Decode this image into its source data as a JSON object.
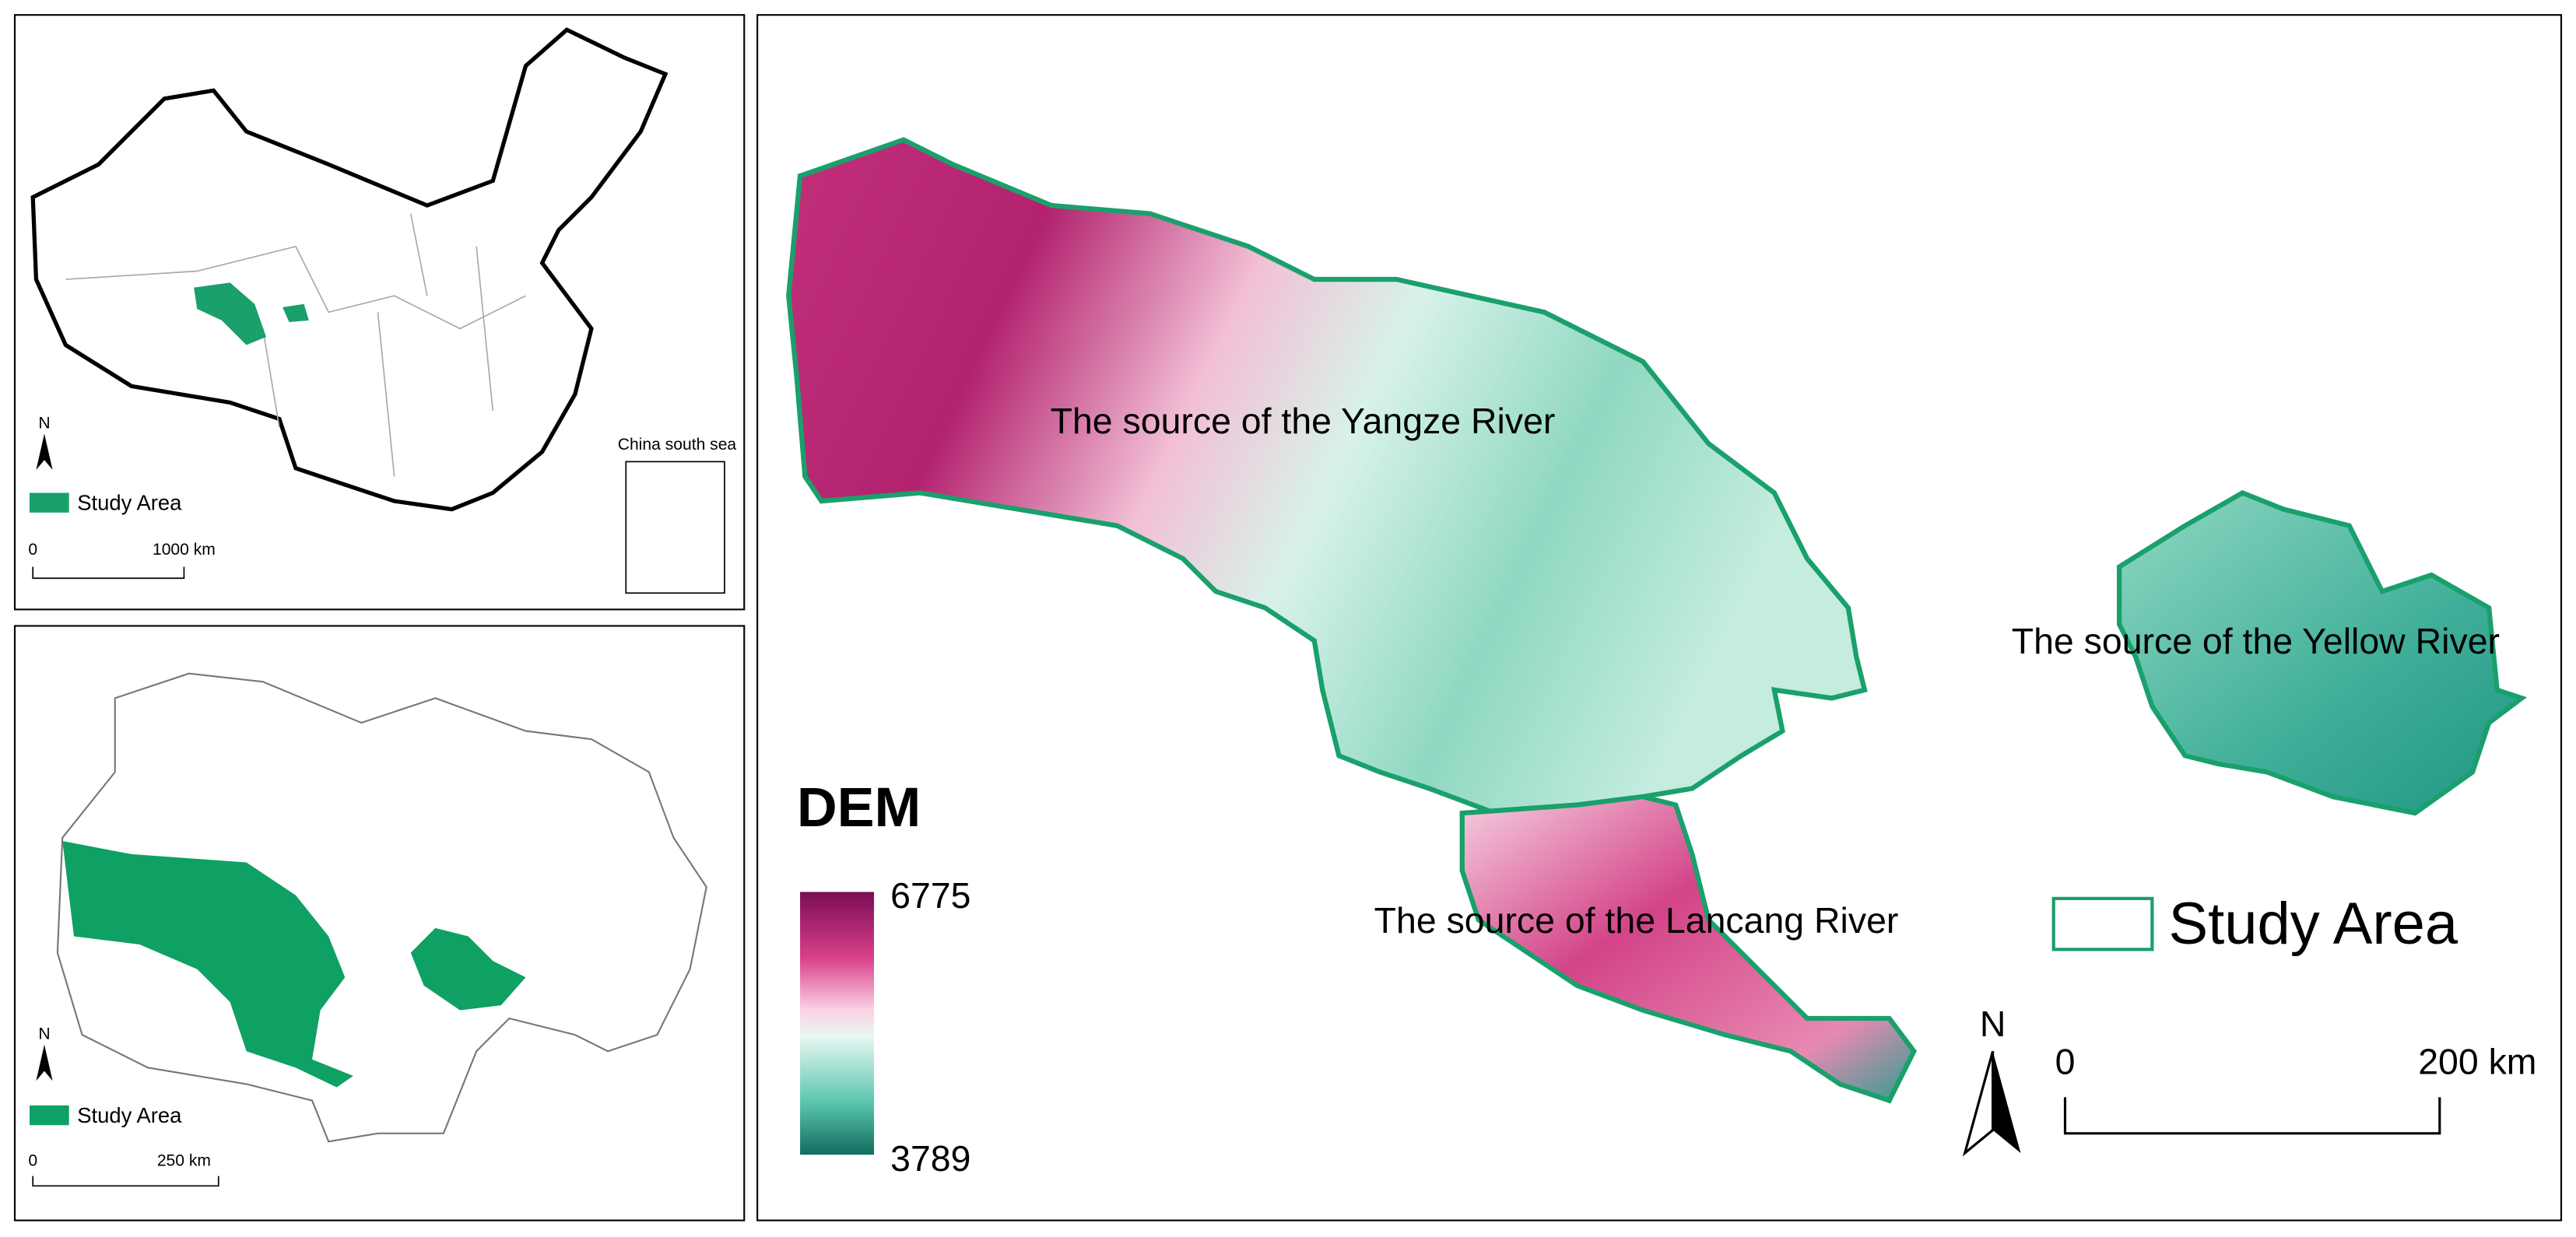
{
  "china_panel": {
    "north": "N",
    "legend": "Study Area",
    "scale_start": "0",
    "scale_end": "1000 km",
    "inset_label": "China south sea"
  },
  "province_panel": {
    "north": "N",
    "legend": "Study Area",
    "scale_start": "0",
    "scale_end": "250 km"
  },
  "main_map": {
    "labels": [
      "The source of the Yangze River",
      "The source of the Yellow River",
      "The source of the Lancang River"
    ],
    "dem_title": "DEM",
    "dem_max": 6775,
    "dem_min": 3789,
    "legend": "Study Area",
    "north": "N",
    "scale_start": "0",
    "scale_end": "200 km"
  }
}
